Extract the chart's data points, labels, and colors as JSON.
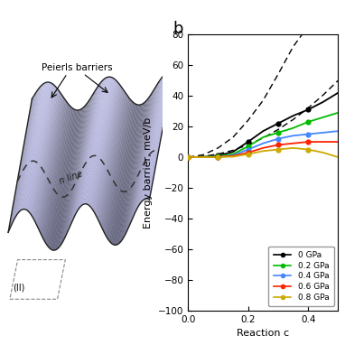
{
  "title_b": "b",
  "ylabel": "Energy barrier, meV/b",
  "xlabel": "Reaction c",
  "ylim": [
    -100,
    80
  ],
  "xlim": [
    0,
    0.5
  ],
  "yticks": [
    -100,
    -80,
    -60,
    -40,
    -20,
    0,
    20,
    40,
    60,
    80
  ],
  "xticks": [
    0,
    0.2,
    0.4
  ],
  "legend_labels": [
    "0 GPa",
    "0.2 GPa",
    "0.4 GPa",
    "0.6 GPa",
    "0.8 GPa"
  ],
  "line_colors": [
    "black",
    "#00bb00",
    "#4488ff",
    "#ff2200",
    "#ccaa00"
  ],
  "x_data": [
    0.0,
    0.05,
    0.1,
    0.15,
    0.2,
    0.25,
    0.3,
    0.35,
    0.4,
    0.45,
    0.5
  ],
  "curves": {
    "0GPa": [
      0,
      0.2,
      1.0,
      3.5,
      10,
      17,
      22,
      27,
      31,
      36,
      42
    ],
    "02GPa": [
      0,
      0.1,
      0.6,
      2.0,
      7,
      13,
      16,
      19,
      23,
      26,
      29
    ],
    "04GPa": [
      0,
      0.0,
      0.3,
      1.2,
      5,
      9,
      12,
      14,
      15,
      16,
      17
    ],
    "06GPa": [
      0,
      0.0,
      0.2,
      0.8,
      3,
      6,
      8,
      9,
      10,
      10,
      10
    ],
    "08GPa": [
      0,
      0.0,
      0.1,
      0.3,
      2,
      4,
      5,
      6,
      5,
      3,
      0
    ]
  },
  "dashed1_x": [
    0,
    0.05,
    0.1,
    0.15,
    0.2,
    0.25,
    0.3,
    0.35,
    0.38
  ],
  "dashed1_y": [
    0,
    1.5,
    6,
    13,
    24,
    37,
    54,
    72,
    80
  ],
  "dashed2_x": [
    0,
    0.05,
    0.1,
    0.15,
    0.2,
    0.25,
    0.3,
    0.35,
    0.4,
    0.45,
    0.5
  ],
  "dashed2_y": [
    0,
    0.5,
    2,
    4.5,
    8,
    12.5,
    18,
    24.5,
    32,
    40.5,
    50
  ],
  "marker_x_indices": [
    0,
    2,
    4,
    6,
    8
  ],
  "bg_color": "white",
  "surface_color_light": [
    0.82,
    0.82,
    0.92
  ],
  "surface_color_dark": [
    0.55,
    0.55,
    0.72
  ],
  "edge_color": "#222222",
  "disl_color": "#333333",
  "annot_text": "Peierls barriers",
  "disl_text": "n line",
  "box_label": "(II)"
}
